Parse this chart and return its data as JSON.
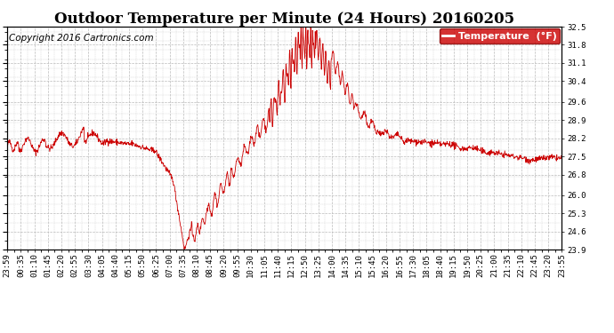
{
  "title": "Outdoor Temperature per Minute (24 Hours) 20160205",
  "copyright_text": "Copyright 2016 Cartronics.com",
  "legend_label": "Temperature  (°F)",
  "line_color": "#cc0000",
  "background_color": "#ffffff",
  "grid_color": "#bbbbbb",
  "ylim": [
    23.9,
    32.5
  ],
  "yticks": [
    23.9,
    24.6,
    25.3,
    26.0,
    26.8,
    27.5,
    28.2,
    28.9,
    29.6,
    30.4,
    31.1,
    31.8,
    32.5
  ],
  "xtick_labels": [
    "23:59",
    "00:35",
    "01:10",
    "01:45",
    "02:20",
    "02:55",
    "03:30",
    "04:05",
    "04:40",
    "05:15",
    "05:50",
    "06:25",
    "07:00",
    "07:35",
    "08:10",
    "08:45",
    "09:20",
    "09:55",
    "10:30",
    "11:05",
    "11:40",
    "12:15",
    "12:50",
    "13:25",
    "14:00",
    "14:35",
    "15:10",
    "15:45",
    "16:20",
    "16:55",
    "17:30",
    "18:05",
    "18:40",
    "19:15",
    "19:50",
    "20:25",
    "21:00",
    "21:35",
    "22:10",
    "22:45",
    "23:20",
    "23:55"
  ],
  "title_fontsize": 12,
  "tick_fontsize": 6.5,
  "copyright_fontsize": 7.5,
  "legend_fontsize": 8,
  "figsize": [
    6.9,
    3.75
  ],
  "dpi": 100
}
